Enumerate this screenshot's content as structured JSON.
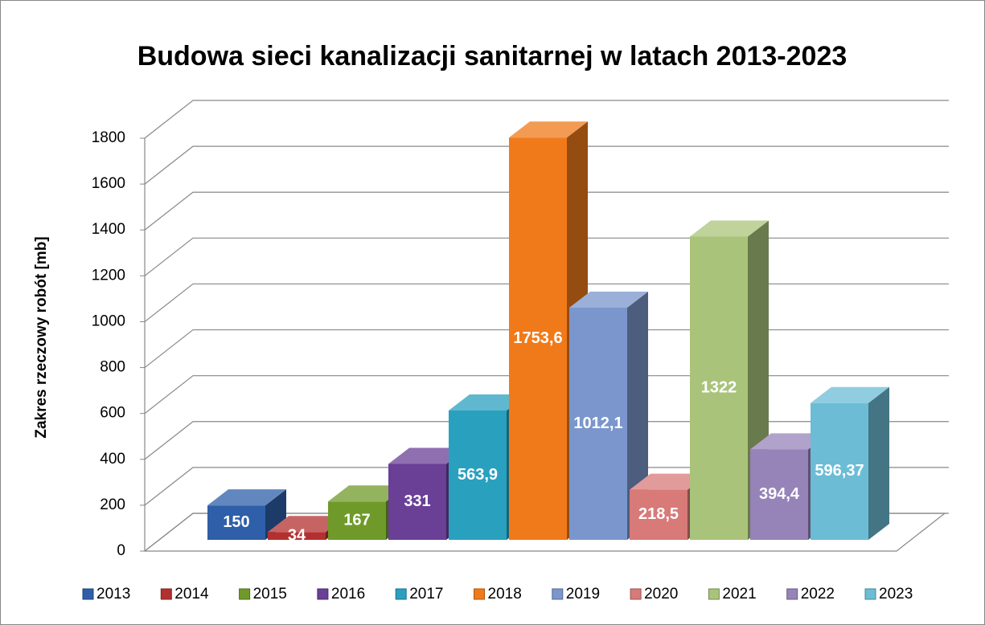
{
  "chart_data": {
    "type": "bar3d",
    "title": "Budowa sieci kanalizacji sanitarnej w latach 2013-2023",
    "ylabel": "Zakres rzeczowy robót [mb]",
    "categories": [
      "2013",
      "2014",
      "2015",
      "2016",
      "2017",
      "2018",
      "2019",
      "2020",
      "2021",
      "2022",
      "2023"
    ],
    "values": [
      150,
      34,
      167,
      331,
      563.9,
      1753.6,
      1012.1,
      218.5,
      1322,
      394.4,
      596.37
    ],
    "value_labels": [
      "150",
      "34",
      "167",
      "331",
      "563,9",
      "1753,6",
      "1012,1",
      "218,5",
      "1322",
      "394,4",
      "596,37"
    ],
    "colors": [
      "#2e5fa8",
      "#b33030",
      "#6f9a2a",
      "#6a3f96",
      "#2aa0bf",
      "#f07a1a",
      "#7a96cc",
      "#d77a78",
      "#a9c47a",
      "#9683b8",
      "#6cbcd6"
    ],
    "ylim": [
      0,
      1800
    ],
    "yticks": [
      0,
      200,
      400,
      600,
      800,
      1000,
      1200,
      1400,
      1600,
      1800
    ],
    "grid": true,
    "legend": "bottom"
  }
}
